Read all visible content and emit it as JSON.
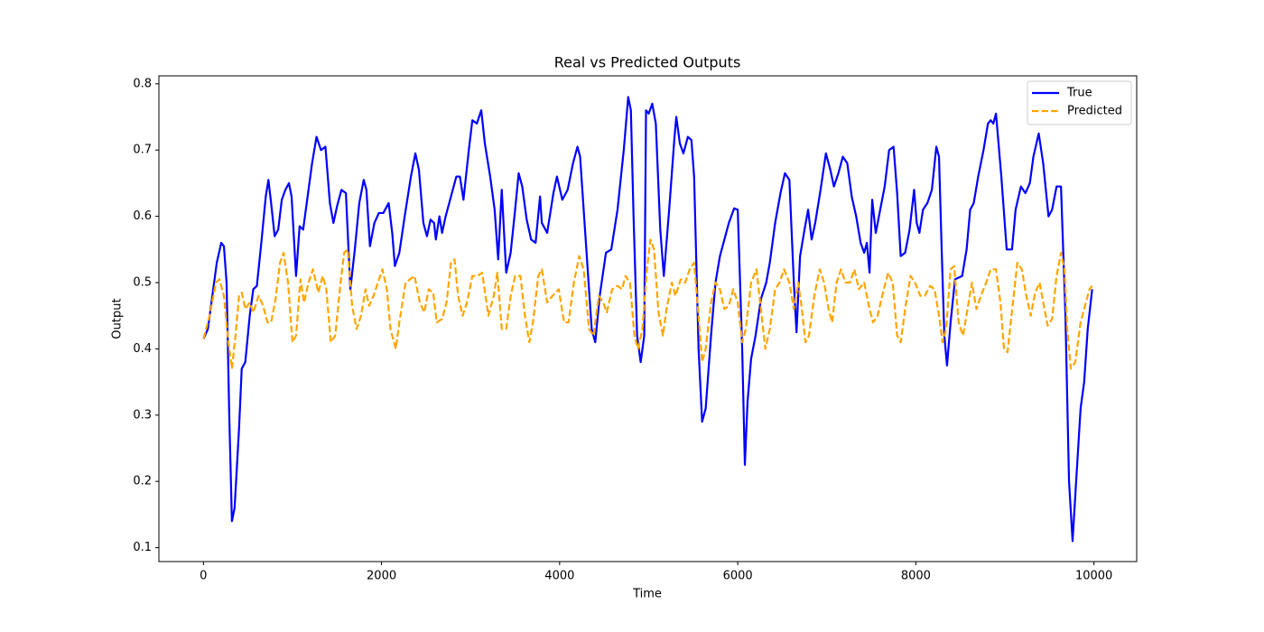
{
  "chart_data": {
    "type": "line",
    "title": "Real vs Predicted Outputs",
    "x_label": "Time",
    "y_label": "Output",
    "xlim": [
      -500,
      10480
    ],
    "ylim": [
      0.079,
      0.812
    ],
    "xticks": [
      0,
      2000,
      4000,
      6000,
      8000,
      10000
    ],
    "yticks": [
      0.1,
      0.2,
      0.3,
      0.4,
      0.5,
      0.6,
      0.7,
      0.8
    ],
    "grid": false,
    "legend": "upper right",
    "series": [
      {
        "name": "True",
        "color": "#0000ff",
        "linestyle": "solid",
        "x": [
          0,
          50,
          100,
          150,
          200,
          230,
          260,
          290,
          320,
          350,
          400,
          430,
          470,
          520,
          560,
          600,
          650,
          700,
          730,
          760,
          800,
          840,
          880,
          920,
          960,
          990,
          1040,
          1080,
          1120,
          1160,
          1220,
          1270,
          1320,
          1370,
          1420,
          1460,
          1500,
          1550,
          1600,
          1650,
          1700,
          1750,
          1800,
          1830,
          1870,
          1920,
          1970,
          2020,
          2080,
          2120,
          2150,
          2200,
          2260,
          2330,
          2380,
          2420,
          2470,
          2510,
          2550,
          2590,
          2610,
          2650,
          2680,
          2720,
          2800,
          2840,
          2880,
          2920,
          2980,
          3020,
          3070,
          3120,
          3160,
          3220,
          3270,
          3310,
          3350,
          3400,
          3450,
          3500,
          3540,
          3580,
          3630,
          3680,
          3730,
          3780,
          3800,
          3860,
          3930,
          3970,
          4030,
          4090,
          4150,
          4200,
          4230,
          4300,
          4360,
          4400,
          4450,
          4520,
          4580,
          4650,
          4720,
          4770,
          4800,
          4830,
          4870,
          4910,
          4950,
          4970,
          5000,
          5040,
          5080,
          5130,
          5170,
          5230,
          5290,
          5310,
          5350,
          5390,
          5440,
          5480,
          5510,
          5560,
          5600,
          5640,
          5700,
          5750,
          5800,
          5850,
          5900,
          5960,
          6000,
          6050,
          6080,
          6110,
          6150,
          6200,
          6260,
          6320,
          6360,
          6420,
          6480,
          6530,
          6580,
          6630,
          6660,
          6700,
          6750,
          6790,
          6830,
          6870,
          6930,
          6990,
          7040,
          7080,
          7130,
          7180,
          7230,
          7280,
          7330,
          7380,
          7420,
          7450,
          7480,
          7510,
          7550,
          7600,
          7650,
          7700,
          7750,
          7790,
          7830,
          7880,
          7930,
          7980,
          8010,
          8040,
          8080,
          8130,
          8180,
          8230,
          8260,
          8290,
          8320,
          8350,
          8390,
          8440,
          8520,
          8570,
          8610,
          8650,
          8700,
          8760,
          8810,
          8840,
          8870,
          8900,
          8960,
          9020,
          9080,
          9120,
          9180,
          9230,
          9280,
          9320,
          9380,
          9430,
          9490,
          9530,
          9580,
          9630,
          9680,
          9720,
          9760,
          9800,
          9850,
          9890,
          9930,
          9980
        ],
        "values": [
          0.415,
          0.43,
          0.48,
          0.53,
          0.56,
          0.555,
          0.5,
          0.3,
          0.14,
          0.16,
          0.28,
          0.37,
          0.38,
          0.45,
          0.49,
          0.495,
          0.56,
          0.63,
          0.655,
          0.62,
          0.57,
          0.58,
          0.625,
          0.64,
          0.65,
          0.63,
          0.51,
          0.585,
          0.58,
          0.62,
          0.68,
          0.72,
          0.7,
          0.705,
          0.62,
          0.59,
          0.615,
          0.64,
          0.635,
          0.49,
          0.55,
          0.62,
          0.655,
          0.64,
          0.555,
          0.59,
          0.605,
          0.605,
          0.62,
          0.575,
          0.525,
          0.545,
          0.6,
          0.66,
          0.695,
          0.67,
          0.59,
          0.57,
          0.595,
          0.59,
          0.565,
          0.6,
          0.575,
          0.6,
          0.64,
          0.66,
          0.66,
          0.625,
          0.7,
          0.745,
          0.74,
          0.76,
          0.71,
          0.66,
          0.61,
          0.535,
          0.64,
          0.515,
          0.545,
          0.61,
          0.665,
          0.645,
          0.595,
          0.565,
          0.56,
          0.63,
          0.59,
          0.575,
          0.635,
          0.66,
          0.625,
          0.64,
          0.68,
          0.705,
          0.69,
          0.55,
          0.43,
          0.41,
          0.48,
          0.545,
          0.55,
          0.61,
          0.7,
          0.78,
          0.76,
          0.6,
          0.42,
          0.38,
          0.42,
          0.76,
          0.755,
          0.77,
          0.74,
          0.58,
          0.51,
          0.61,
          0.72,
          0.75,
          0.71,
          0.695,
          0.72,
          0.715,
          0.66,
          0.4,
          0.29,
          0.31,
          0.42,
          0.5,
          0.54,
          0.565,
          0.59,
          0.612,
          0.61,
          0.4,
          0.225,
          0.32,
          0.385,
          0.42,
          0.475,
          0.5,
          0.53,
          0.59,
          0.635,
          0.665,
          0.655,
          0.5,
          0.425,
          0.54,
          0.58,
          0.61,
          0.565,
          0.59,
          0.64,
          0.695,
          0.67,
          0.645,
          0.665,
          0.69,
          0.68,
          0.63,
          0.6,
          0.56,
          0.545,
          0.56,
          0.515,
          0.625,
          0.575,
          0.61,
          0.645,
          0.7,
          0.705,
          0.635,
          0.54,
          0.545,
          0.58,
          0.64,
          0.59,
          0.575,
          0.61,
          0.62,
          0.64,
          0.705,
          0.69,
          0.55,
          0.42,
          0.375,
          0.44,
          0.505,
          0.51,
          0.55,
          0.61,
          0.62,
          0.66,
          0.7,
          0.74,
          0.745,
          0.74,
          0.755,
          0.66,
          0.55,
          0.55,
          0.61,
          0.645,
          0.635,
          0.65,
          0.69,
          0.725,
          0.68,
          0.6,
          0.61,
          0.645,
          0.645,
          0.45,
          0.2,
          0.11,
          0.2,
          0.31,
          0.35,
          0.43,
          0.49
        ]
      },
      {
        "name": "Predicted",
        "color": "#ffa500",
        "linestyle": "dashed",
        "x": [
          0,
          70,
          140,
          180,
          230,
          280,
          320,
          360,
          400,
          430,
          470,
          520,
          560,
          620,
          670,
          720,
          760,
          810,
          860,
          900,
          950,
          1000,
          1040,
          1090,
          1130,
          1180,
          1230,
          1290,
          1340,
          1380,
          1430,
          1480,
          1540,
          1580,
          1620,
          1670,
          1720,
          1770,
          1820,
          1860,
          1910,
          1960,
          2010,
          2060,
          2100,
          2160,
          2200,
          2270,
          2320,
          2370,
          2430,
          2480,
          2530,
          2580,
          2620,
          2680,
          2730,
          2780,
          2820,
          2860,
          2910,
          2960,
          3020,
          3080,
          3130,
          3200,
          3260,
          3300,
          3350,
          3400,
          3450,
          3500,
          3560,
          3610,
          3660,
          3700,
          3760,
          3800,
          3860,
          3920,
          3990,
          4050,
          4100,
          4160,
          4220,
          4270,
          4330,
          4380,
          4440,
          4490,
          4530,
          4590,
          4650,
          4700,
          4740,
          4790,
          4840,
          4880,
          4930,
          4980,
          5020,
          5060,
          5110,
          5160,
          5200,
          5260,
          5300,
          5360,
          5410,
          5460,
          5510,
          5560,
          5600,
          5640,
          5700,
          5750,
          5800,
          5850,
          5900,
          5950,
          6000,
          6050,
          6090,
          6150,
          6210,
          6260,
          6310,
          6360,
          6420,
          6470,
          6520,
          6580,
          6630,
          6680,
          6720,
          6760,
          6800,
          6860,
          6920,
          6970,
          7020,
          7060,
          7110,
          7160,
          7210,
          7260,
          7310,
          7360,
          7420,
          7480,
          7520,
          7570,
          7640,
          7690,
          7740,
          7790,
          7830,
          7880,
          7940,
          7990,
          8050,
          8100,
          8160,
          8210,
          8260,
          8300,
          8340,
          8390,
          8430,
          8480,
          8530,
          8580,
          8630,
          8680,
          8730,
          8790,
          8840,
          8900,
          8950,
          8990,
          9030,
          9090,
          9140,
          9190,
          9240,
          9290,
          9340,
          9390,
          9430,
          9480,
          9530,
          9580,
          9630,
          9670,
          9700,
          9740,
          9790,
          9850,
          9900,
          9950,
          9980
        ],
        "values": [
          0.415,
          0.45,
          0.5,
          0.505,
          0.48,
          0.41,
          0.37,
          0.42,
          0.48,
          0.485,
          0.46,
          0.47,
          0.455,
          0.48,
          0.465,
          0.44,
          0.44,
          0.475,
          0.53,
          0.545,
          0.5,
          0.41,
          0.42,
          0.505,
          0.47,
          0.5,
          0.52,
          0.485,
          0.51,
          0.49,
          0.41,
          0.42,
          0.5,
          0.545,
          0.55,
          0.465,
          0.43,
          0.45,
          0.49,
          0.465,
          0.48,
          0.5,
          0.52,
          0.49,
          0.43,
          0.4,
          0.44,
          0.5,
          0.505,
          0.51,
          0.47,
          0.455,
          0.49,
          0.485,
          0.44,
          0.445,
          0.47,
          0.53,
          0.535,
          0.48,
          0.45,
          0.47,
          0.51,
          0.51,
          0.515,
          0.45,
          0.48,
          0.515,
          0.43,
          0.43,
          0.48,
          0.51,
          0.51,
          0.45,
          0.41,
          0.44,
          0.51,
          0.52,
          0.47,
          0.48,
          0.49,
          0.44,
          0.44,
          0.5,
          0.54,
          0.52,
          0.43,
          0.42,
          0.48,
          0.47,
          0.455,
          0.49,
          0.495,
          0.49,
          0.51,
          0.5,
          0.42,
          0.4,
          0.43,
          0.52,
          0.565,
          0.55,
          0.455,
          0.42,
          0.46,
          0.5,
          0.48,
          0.505,
          0.5,
          0.52,
          0.53,
          0.45,
          0.38,
          0.4,
          0.47,
          0.5,
          0.49,
          0.46,
          0.465,
          0.49,
          0.47,
          0.41,
          0.43,
          0.5,
          0.52,
          0.46,
          0.4,
          0.43,
          0.49,
          0.5,
          0.52,
          0.5,
          0.46,
          0.5,
          0.46,
          0.41,
          0.42,
          0.48,
          0.52,
          0.5,
          0.46,
          0.44,
          0.5,
          0.52,
          0.5,
          0.5,
          0.52,
          0.49,
          0.5,
          0.46,
          0.44,
          0.45,
          0.49,
          0.515,
          0.5,
          0.42,
          0.41,
          0.46,
          0.51,
          0.5,
          0.48,
          0.48,
          0.495,
          0.49,
          0.45,
          0.41,
          0.43,
          0.52,
          0.525,
          0.44,
          0.42,
          0.46,
          0.5,
          0.46,
          0.48,
          0.5,
          0.52,
          0.52,
          0.47,
          0.4,
          0.395,
          0.47,
          0.53,
          0.52,
          0.48,
          0.45,
          0.485,
          0.5,
          0.47,
          0.435,
          0.445,
          0.51,
          0.545,
          0.52,
          0.43,
          0.37,
          0.38,
          0.44,
          0.465,
          0.49,
          0.495
        ]
      }
    ]
  }
}
